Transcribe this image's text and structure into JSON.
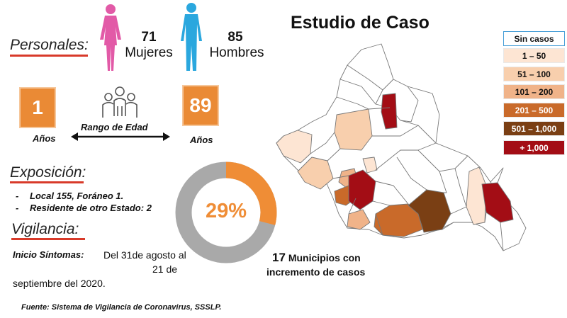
{
  "header": {
    "title": "Estudio de Caso"
  },
  "personales": {
    "title": "Personales:",
    "women": {
      "count": "71",
      "label": "Mujeres"
    },
    "men": {
      "count": "85",
      "label": "Hombres"
    }
  },
  "age": {
    "min": "1",
    "max": "89",
    "unit": "Años",
    "range_label": "Rango de Edad"
  },
  "exposure": {
    "title": "Exposición:",
    "items": [
      "Local 155, Foráneo 1.",
      "Residente de otro Estado: 2"
    ]
  },
  "donut": {
    "percent_label": "29%",
    "percent": 29,
    "color": "#ef8d36",
    "track": "#a9a9a9"
  },
  "surveillance": {
    "title": "Vigilancia:",
    "onset_label": "Inicio Síntomas:",
    "onset_text_1": "Del 31de agosto al",
    "onset_text_2": "21 de",
    "onset_text_3": "septiembre del 2020."
  },
  "municipios": {
    "count": "17",
    "line1": "Municipios con",
    "line2": "incremento de casos"
  },
  "legend": [
    {
      "label": "Sin casos",
      "color": "#ffffff",
      "text": "#111"
    },
    {
      "label": "1 – 50",
      "color": "#fde5d3",
      "text": "#111"
    },
    {
      "label": "51 – 100",
      "color": "#f8cfad",
      "text": "#111"
    },
    {
      "label": "101 – 200",
      "color": "#f0b389",
      "text": "#111"
    },
    {
      "label": "201 – 500",
      "color": "#c96a2a",
      "text": "#ffffff"
    },
    {
      "label": "501 – 1,000",
      "color": "#7a3f14",
      "text": "#ffffff"
    },
    {
      "label": "+ 1,000",
      "color": "#a30d15",
      "text": "#ffffff"
    }
  ],
  "source": "Fuente: Sistema de Vigilancia de Coronavirus, SSSLP.",
  "colors": {
    "accent_orange": "#ea8a35",
    "underline_red": "#d83a2a",
    "female": "#e25aa7",
    "male": "#2aa7de"
  }
}
